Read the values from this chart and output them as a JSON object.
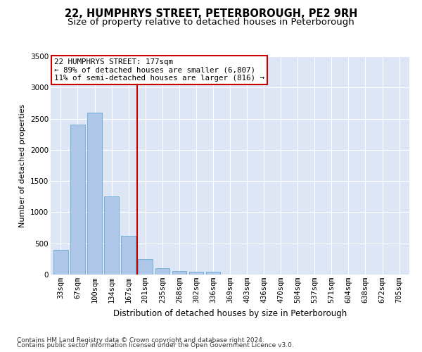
{
  "title": "22, HUMPHRYS STREET, PETERBOROUGH, PE2 9RH",
  "subtitle": "Size of property relative to detached houses in Peterborough",
  "xlabel": "Distribution of detached houses by size in Peterborough",
  "ylabel": "Number of detached properties",
  "categories": [
    "33sqm",
    "67sqm",
    "100sqm",
    "134sqm",
    "167sqm",
    "201sqm",
    "235sqm",
    "268sqm",
    "302sqm",
    "336sqm",
    "369sqm",
    "403sqm",
    "436sqm",
    "470sqm",
    "504sqm",
    "537sqm",
    "571sqm",
    "604sqm",
    "638sqm",
    "672sqm",
    "705sqm"
  ],
  "values": [
    400,
    2400,
    2600,
    1250,
    620,
    250,
    100,
    60,
    50,
    40,
    0,
    0,
    0,
    0,
    0,
    0,
    0,
    0,
    0,
    0,
    0
  ],
  "bar_color": "#aec6e8",
  "bar_edge_color": "#6aaad4",
  "vline_color": "#cc0000",
  "vline_pos": 4.5,
  "annotation_line1": "22 HUMPHRYS STREET: 177sqm",
  "annotation_line2": "← 89% of detached houses are smaller (6,807)",
  "annotation_line3": "11% of semi-detached houses are larger (816) →",
  "annotation_box_color": "#cc0000",
  "ylim": [
    0,
    3500
  ],
  "yticks": [
    0,
    500,
    1000,
    1500,
    2000,
    2500,
    3000,
    3500
  ],
  "plot_background": "#dce6f5",
  "footer_line1": "Contains HM Land Registry data © Crown copyright and database right 2024.",
  "footer_line2": "Contains public sector information licensed under the Open Government Licence v3.0.",
  "title_fontsize": 10.5,
  "subtitle_fontsize": 9.5,
  "xlabel_fontsize": 8.5,
  "ylabel_fontsize": 8,
  "tick_fontsize": 7.5,
  "ann_fontsize": 7.8,
  "footer_fontsize": 6.5
}
